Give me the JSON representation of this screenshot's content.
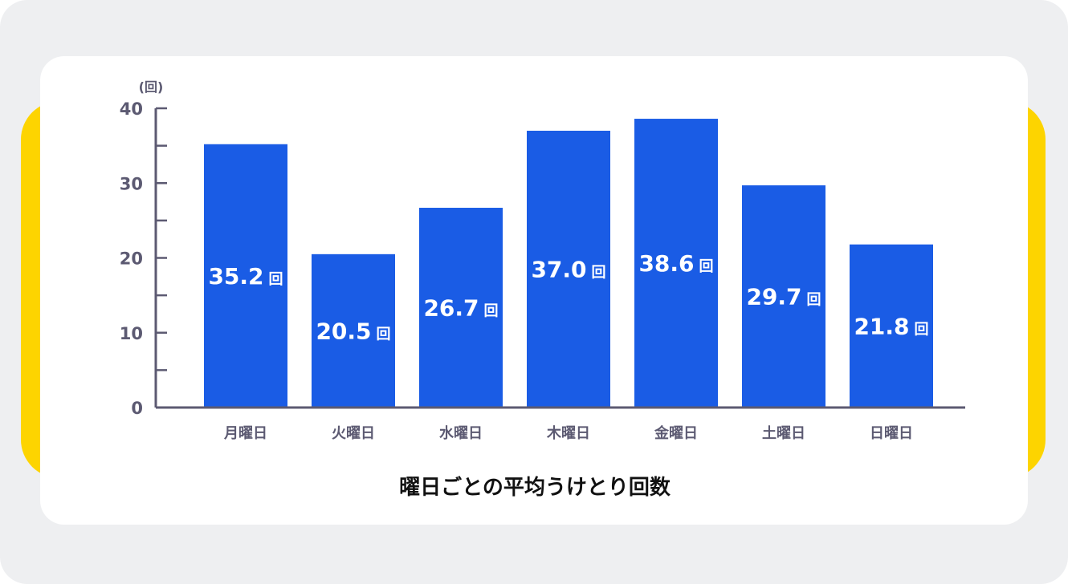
{
  "colors": {
    "background": "#eeeff1",
    "accent": "#fdd400",
    "card": "#ffffff",
    "bar": "#1a5ce5",
    "axis": "#5c5a72",
    "title": "#111111"
  },
  "chart_data": {
    "type": "bar",
    "title": "曜日ごとの平均うけとり回数",
    "ylabel": "(回)",
    "ylim": [
      0,
      40
    ],
    "yticks": [
      "0",
      "10",
      "20",
      "30",
      "40"
    ],
    "categories": [
      "月曜日",
      "火曜日",
      "水曜日",
      "木曜日",
      "金曜日",
      "土曜日",
      "日曜日"
    ],
    "values": [
      35.2,
      20.5,
      26.7,
      37.0,
      38.6,
      29.7,
      21.8
    ],
    "data_labels": [
      "35.2",
      "20.5",
      "26.7",
      "37.0",
      "38.6",
      "29.7",
      "21.8"
    ],
    "data_label_unit": "回",
    "grid": false,
    "legend": "none"
  }
}
